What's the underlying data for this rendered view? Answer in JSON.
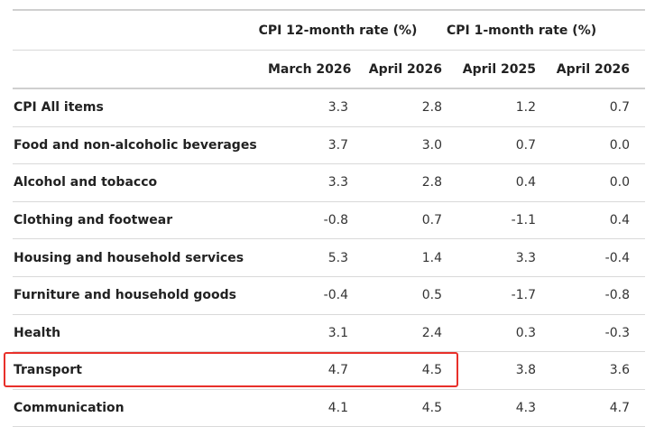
{
  "header": {
    "group_12m": "CPI 12-month rate (%)",
    "group_1m": "CPI 1-month rate (%)",
    "columns": [
      "March 2026",
      "April 2026",
      "April 2025",
      "April 2026"
    ]
  },
  "rows": [
    {
      "label": "CPI All items",
      "values": [
        "3.3",
        "2.8",
        "1.2",
        "0.7"
      ]
    },
    {
      "label": "Food and non-alcoholic beverages",
      "values": [
        "3.7",
        "3.0",
        "0.7",
        "0.0"
      ]
    },
    {
      "label": "Alcohol and tobacco",
      "values": [
        "3.3",
        "2.8",
        "0.4",
        "0.0"
      ]
    },
    {
      "label": "Clothing and footwear",
      "values": [
        "-0.8",
        "0.7",
        "-1.1",
        "0.4"
      ]
    },
    {
      "label": "Housing and household services",
      "values": [
        "5.3",
        "1.4",
        "3.3",
        "-0.4"
      ]
    },
    {
      "label": "Furniture and household goods",
      "values": [
        "-0.4",
        "0.5",
        "-1.7",
        "-0.8"
      ]
    },
    {
      "label": "Health",
      "values": [
        "3.1",
        "2.4",
        "0.3",
        "-0.3"
      ]
    },
    {
      "label": "Transport",
      "values": [
        "4.7",
        "4.5",
        "3.8",
        "3.6"
      ]
    },
    {
      "label": "Communication",
      "values": [
        "4.1",
        "4.5",
        "4.3",
        "4.7"
      ]
    }
  ],
  "highlight_color": "#e8302a"
}
